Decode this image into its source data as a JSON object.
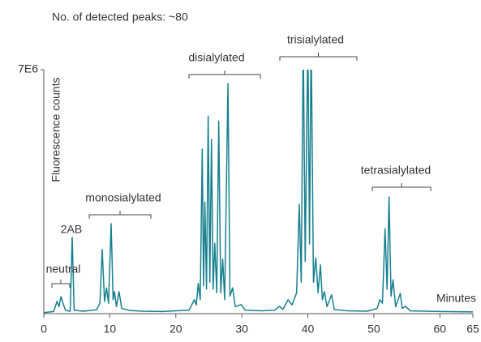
{
  "chart_data": {
    "type": "line",
    "title": "No. of  detected peaks: ~80",
    "ylabel": "Fluorescence counts",
    "xlabel": "Minutes",
    "color": "#17808f",
    "xlim": [
      0,
      65
    ],
    "ylim": [
      0,
      7000000
    ],
    "xticks": [
      0,
      10,
      20,
      30,
      40,
      50,
      60,
      65
    ],
    "yticks": [
      {
        "value": 7000000,
        "label": "7E6"
      }
    ],
    "annotations": [
      "neutral",
      "2AB",
      "monosialylated",
      "disialylated",
      "trisialylated",
      "tetrasialylated"
    ],
    "x": [
      0,
      1.5,
      2.0,
      2.3,
      2.6,
      2.9,
      3.3,
      4.0,
      4.3,
      4.6,
      6.0,
      8.0,
      8.5,
      8.85,
      9.2,
      9.5,
      9.8,
      10.2,
      10.5,
      10.7,
      11.0,
      11.4,
      11.8,
      13.0,
      15.0,
      18.0,
      20.0,
      22.0,
      22.8,
      23.1,
      23.4,
      23.7,
      24.0,
      24.2,
      24.4,
      24.65,
      24.9,
      25.15,
      25.4,
      25.65,
      25.9,
      26.2,
      26.5,
      26.8,
      27.1,
      27.4,
      27.9,
      28.2,
      28.6,
      29.0,
      29.9,
      30.5,
      33.0,
      35.0,
      35.7,
      36.2,
      37.0,
      37.6,
      38.3,
      38.7,
      39.0,
      39.3,
      39.6,
      40.0,
      40.25,
      40.5,
      40.85,
      41.2,
      41.55,
      41.9,
      42.2,
      42.5,
      42.9,
      43.6,
      44.0,
      46.0,
      49.0,
      50.5,
      50.9,
      51.3,
      51.7,
      52.0,
      52.3,
      52.6,
      52.9,
      53.3,
      54.0,
      54.3,
      54.8,
      55.5,
      60.0,
      65.0
    ],
    "values": [
      30000,
      60000,
      350000,
      200000,
      490000,
      300000,
      90000,
      70000,
      2190000,
      100000,
      70000,
      110000,
      300000,
      1840000,
      350000,
      740000,
      300000,
      2580000,
      400000,
      630000,
      200000,
      630000,
      150000,
      90000,
      70000,
      60000,
      80000,
      100000,
      400000,
      250000,
      870000,
      400000,
      4720000,
      800000,
      3200000,
      700000,
      5670000,
      900000,
      5000000,
      700000,
      2020000,
      600000,
      5530000,
      600000,
      1560000,
      400000,
      6600000,
      500000,
      740000,
      200000,
      260000,
      100000,
      80000,
      100000,
      210000,
      120000,
      400000,
      250000,
      600000,
      3140000,
      900000,
      8000000,
      1500000,
      8000000,
      2000000,
      8000000,
      900000,
      1600000,
      600000,
      1400000,
      400000,
      630000,
      200000,
      540000,
      120000,
      80000,
      70000,
      150000,
      400000,
      300000,
      2440000,
      700000,
      3350000,
      500000,
      970000,
      200000,
      580000,
      150000,
      210000,
      80000,
      60000,
      50000
    ]
  }
}
